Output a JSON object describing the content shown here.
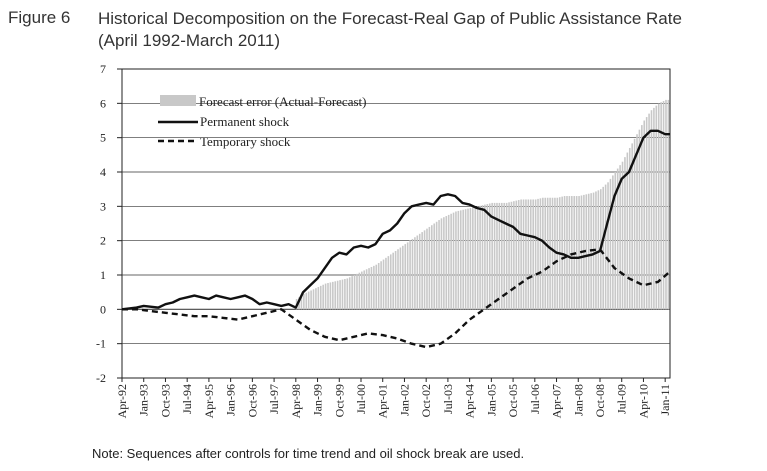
{
  "figure": {
    "label": "Figure 6",
    "title_line1": "Historical Decomposition on the Forecast-Real Gap of Public Assistance Rate",
    "title_line2": "(April 1992-March 2011)",
    "note": "Note: Sequences after controls for time trend and oil shock break are used."
  },
  "chart_data": {
    "type": "line",
    "title": "Historical Decomposition on the Forecast-Real Gap of Public Assistance Rate",
    "subtitle": "(April 1992-March 2011)",
    "xlabel": "",
    "ylabel": "",
    "ylim": [
      -2,
      7
    ],
    "yticks": [
      7,
      6,
      5,
      4,
      3,
      2,
      1,
      0,
      -1,
      -2
    ],
    "grid": "horizontal",
    "legend_position": "top-left",
    "x_tick_labels": [
      "Apr-92",
      "Jan-93",
      "Oct-93",
      "Jul-94",
      "Apr-95",
      "Jan-96",
      "Oct-96",
      "Jul-97",
      "Apr-98",
      "Jan-99",
      "Oct-99",
      "Jul-00",
      "Apr-01",
      "Jan-02",
      "Oct-02",
      "Jul-03",
      "Apr-04",
      "Jan-05",
      "Oct-05",
      "Jul-06",
      "Apr-07",
      "Jan-08",
      "Oct-08",
      "Jul-09",
      "Apr-10",
      "Jan-11"
    ],
    "x_start": "1992-04",
    "x_end": "2011-03",
    "series": [
      {
        "name": "Forecast error (Actual-Forecast)",
        "style": "bar",
        "color": "#c8c8c8",
        "x": [
          "1998-04",
          "1998-07",
          "1998-10",
          "1999-01",
          "1999-04",
          "1999-07",
          "1999-10",
          "2000-01",
          "2000-04",
          "2000-07",
          "2000-10",
          "2001-01",
          "2001-04",
          "2001-07",
          "2001-10",
          "2002-01",
          "2002-04",
          "2002-07",
          "2002-10",
          "2003-01",
          "2003-04",
          "2003-07",
          "2003-10",
          "2004-01",
          "2004-04",
          "2004-07",
          "2004-10",
          "2005-01",
          "2005-04",
          "2005-07",
          "2005-10",
          "2006-01",
          "2006-04",
          "2006-07",
          "2006-10",
          "2007-01",
          "2007-04",
          "2007-07",
          "2007-10",
          "2008-01",
          "2008-04",
          "2008-07",
          "2008-10",
          "2009-01",
          "2009-04",
          "2009-07",
          "2009-10",
          "2010-01",
          "2010-04",
          "2010-07",
          "2010-10",
          "2011-01",
          "2011-03"
        ],
        "values": [
          0.3,
          0.45,
          0.55,
          0.65,
          0.75,
          0.8,
          0.85,
          0.9,
          1.0,
          1.1,
          1.2,
          1.3,
          1.45,
          1.6,
          1.75,
          1.9,
          2.05,
          2.2,
          2.35,
          2.5,
          2.65,
          2.75,
          2.85,
          2.9,
          2.95,
          3.0,
          3.05,
          3.1,
          3.1,
          3.1,
          3.15,
          3.2,
          3.2,
          3.2,
          3.25,
          3.25,
          3.25,
          3.3,
          3.3,
          3.3,
          3.35,
          3.4,
          3.5,
          3.7,
          4.0,
          4.3,
          4.7,
          5.1,
          5.5,
          5.8,
          6.0,
          6.1,
          6.1
        ]
      },
      {
        "name": "Permanent shock",
        "style": "solid",
        "color": "#111111",
        "x": [
          "1992-04",
          "1992-10",
          "1993-01",
          "1993-07",
          "1993-10",
          "1994-01",
          "1994-04",
          "1994-07",
          "1994-10",
          "1995-01",
          "1995-04",
          "1995-07",
          "1995-10",
          "1996-01",
          "1996-04",
          "1996-07",
          "1996-10",
          "1997-01",
          "1997-04",
          "1997-07",
          "1997-10",
          "1998-01",
          "1998-04",
          "1998-07",
          "1998-10",
          "1999-01",
          "1999-04",
          "1999-07",
          "1999-10",
          "2000-01",
          "2000-04",
          "2000-07",
          "2000-10",
          "2001-01",
          "2001-04",
          "2001-07",
          "2001-10",
          "2002-01",
          "2002-04",
          "2002-07",
          "2002-10",
          "2003-01",
          "2003-04",
          "2003-07",
          "2003-10",
          "2004-01",
          "2004-04",
          "2004-07",
          "2004-10",
          "2005-01",
          "2005-04",
          "2005-07",
          "2005-10",
          "2006-01",
          "2006-04",
          "2006-07",
          "2006-10",
          "2007-01",
          "2007-04",
          "2007-07",
          "2007-10",
          "2008-01",
          "2008-04",
          "2008-07",
          "2008-10",
          "2009-01",
          "2009-04",
          "2009-07",
          "2009-10",
          "2010-01",
          "2010-04",
          "2010-07",
          "2010-10",
          "2011-01",
          "2011-03"
        ],
        "values": [
          0.0,
          0.05,
          0.1,
          0.05,
          0.15,
          0.2,
          0.3,
          0.35,
          0.4,
          0.35,
          0.3,
          0.4,
          0.35,
          0.3,
          0.35,
          0.4,
          0.3,
          0.15,
          0.2,
          0.15,
          0.1,
          0.15,
          0.05,
          0.5,
          0.7,
          0.9,
          1.2,
          1.5,
          1.65,
          1.6,
          1.8,
          1.85,
          1.8,
          1.9,
          2.2,
          2.3,
          2.5,
          2.8,
          3.0,
          3.05,
          3.1,
          3.05,
          3.3,
          3.35,
          3.3,
          3.1,
          3.05,
          2.95,
          2.9,
          2.7,
          2.6,
          2.5,
          2.4,
          2.2,
          2.15,
          2.1,
          2.0,
          1.8,
          1.65,
          1.6,
          1.5,
          1.5,
          1.55,
          1.6,
          1.7,
          2.5,
          3.3,
          3.8,
          4.0,
          4.5,
          5.0,
          5.2,
          5.2,
          5.1,
          5.1
        ]
      },
      {
        "name": "Temporary shock",
        "style": "dashed",
        "color": "#111111",
        "x": [
          "1992-04",
          "1992-10",
          "1993-04",
          "1993-10",
          "1994-04",
          "1994-10",
          "1995-04",
          "1995-10",
          "1996-04",
          "1996-10",
          "1997-04",
          "1997-10",
          "1998-04",
          "1998-10",
          "1999-04",
          "1999-10",
          "2000-04",
          "2000-10",
          "2001-04",
          "2001-10",
          "2002-04",
          "2002-10",
          "2003-04",
          "2003-10",
          "2004-04",
          "2004-10",
          "2005-04",
          "2005-10",
          "2006-04",
          "2006-10",
          "2007-04",
          "2007-10",
          "2008-04",
          "2008-10",
          "2009-04",
          "2009-10",
          "2010-04",
          "2010-10",
          "2011-03"
        ],
        "values": [
          0.0,
          0.0,
          -0.05,
          -0.1,
          -0.15,
          -0.2,
          -0.2,
          -0.25,
          -0.3,
          -0.2,
          -0.1,
          0.0,
          -0.3,
          -0.6,
          -0.8,
          -0.9,
          -0.8,
          -0.7,
          -0.75,
          -0.85,
          -1.0,
          -1.1,
          -1.0,
          -0.7,
          -0.3,
          0.0,
          0.3,
          0.6,
          0.9,
          1.1,
          1.4,
          1.6,
          1.7,
          1.75,
          1.2,
          0.9,
          0.7,
          0.8,
          1.1
        ]
      }
    ]
  }
}
